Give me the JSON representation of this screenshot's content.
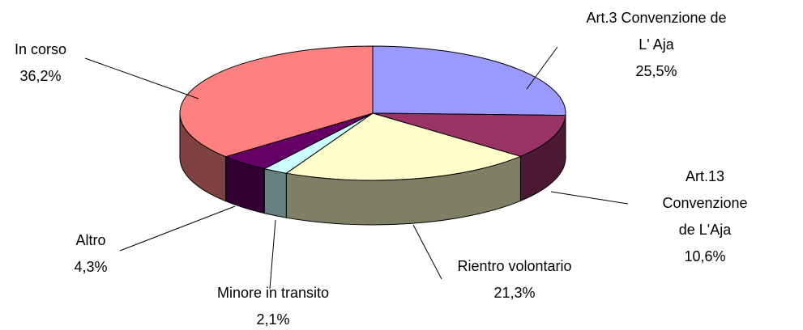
{
  "chart_data": {
    "type": "pie",
    "categories": [
      "Art.3 Convenzione de\nL' Aja",
      "Art.13 Convenzione\nde L'Aja",
      "Rientro volontario",
      "Minore in transito",
      "Altro",
      "In corso"
    ],
    "values": [
      25.5,
      10.6,
      21.3,
      2.1,
      4.3,
      36.2
    ],
    "value_labels": [
      "25,5%",
      "10,6%",
      "21,3%",
      "2,1%",
      "4,3%",
      "36,2%"
    ],
    "colors": [
      "#9999ff",
      "#993366",
      "#ffffcc",
      "#ccffff",
      "#660066",
      "#ff8080"
    ]
  }
}
